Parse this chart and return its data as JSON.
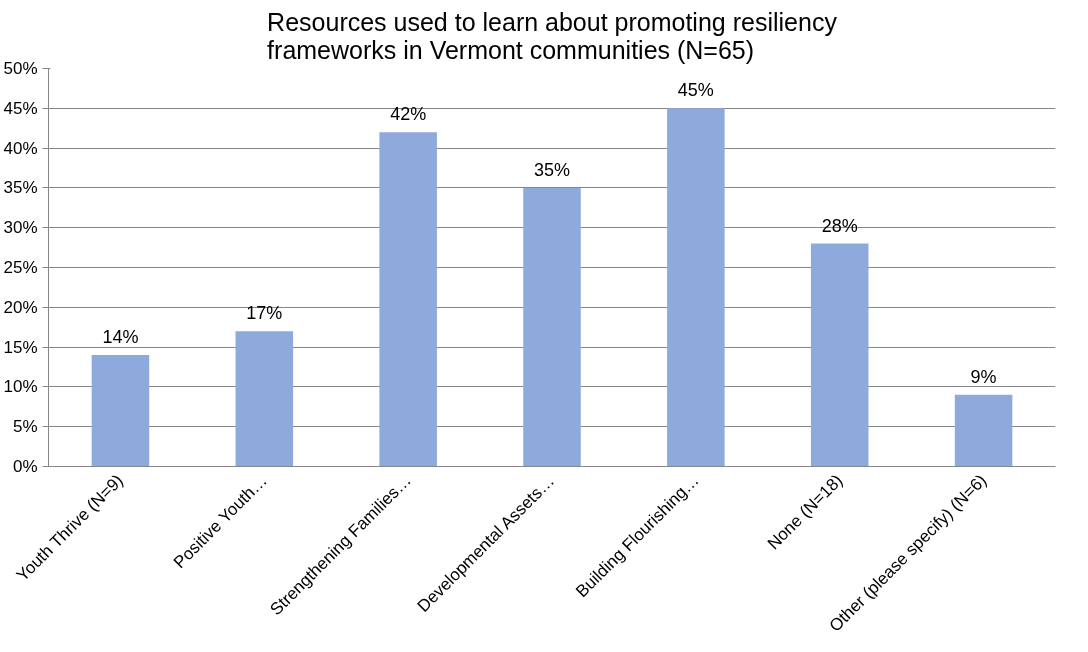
{
  "chart_data": {
    "type": "bar",
    "title": "Resources used to learn about promoting resiliency\nframeworks in Vermont communities (N=65)",
    "categories": [
      "Youth Thrive (N=9)",
      "Positive Youth…",
      "Strengthening Families…",
      "Developmental Assets…",
      "Building Flourishing…",
      "None (N=18)",
      "Other (please specify) (N=6)"
    ],
    "values": [
      14,
      17,
      42,
      35,
      45,
      28,
      9
    ],
    "value_labels": [
      "14%",
      "17%",
      "42%",
      "35%",
      "45%",
      "28%",
      "9%"
    ],
    "color": "#8eaadc",
    "ylim": [
      0,
      50
    ],
    "yticks": [
      {
        "value": 0,
        "label": "0%"
      },
      {
        "value": 5,
        "label": "5%"
      },
      {
        "value": 10,
        "label": "10%"
      },
      {
        "value": 15,
        "label": "15%"
      },
      {
        "value": 20,
        "label": "20%"
      },
      {
        "value": 25,
        "label": "25%"
      },
      {
        "value": 30,
        "label": "30%"
      },
      {
        "value": 35,
        "label": "35%"
      },
      {
        "value": 40,
        "label": "40%"
      },
      {
        "value": 45,
        "label": "45%"
      },
      {
        "value": 50,
        "label": "50%"
      }
    ],
    "grid": "y"
  }
}
